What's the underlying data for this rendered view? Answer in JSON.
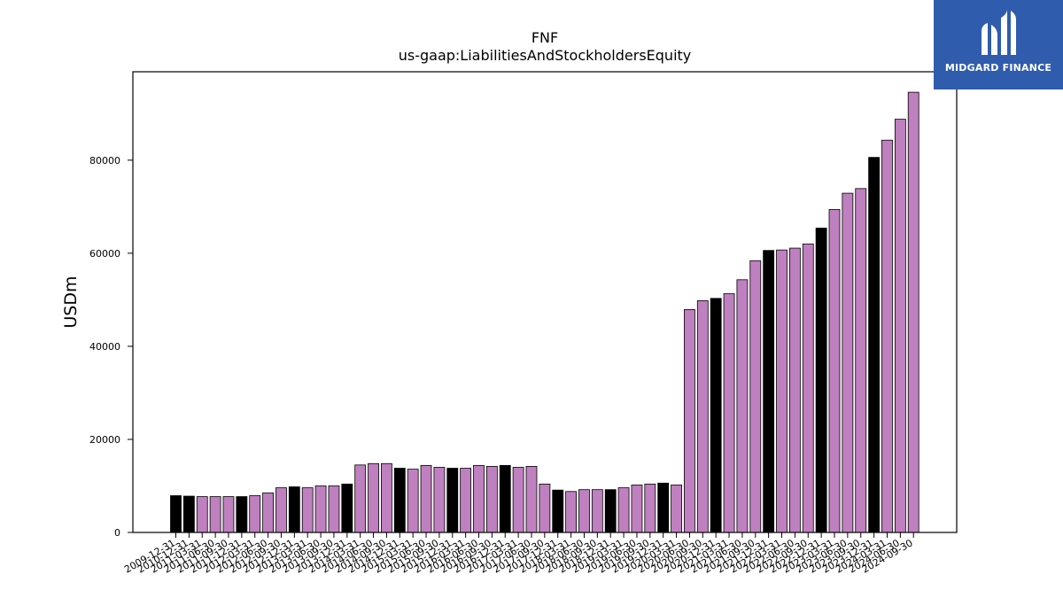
{
  "chart_data": {
    "type": "bar",
    "title": "FNF",
    "subtitle": "us-gaap:LiabilitiesAndStockholdersEquity",
    "xlabel": "",
    "ylabel": "USDm",
    "ylim": [
      0,
      99000
    ],
    "yticks": [
      0,
      20000,
      40000,
      60000,
      80000
    ],
    "grid": false,
    "colors": {
      "annual": "#000000",
      "quarterly": "#bf80bf",
      "edge": "#000000"
    },
    "visible_xtick_labels": [
      "2009-12-31",
      "2010-12-31",
      "2011-03-31",
      "2011-06-30",
      "2011-09-30",
      "2011-12-31",
      "2012-03-31",
      "2012-06-30",
      "2012-09-30",
      "2012-12-31",
      "2013-03-31",
      "2013-06-30",
      "2013-09-30",
      "2013-12-31",
      "2014-03-31",
      "2014-06-30",
      "2014-09-30",
      "2014-12-31",
      "2015-03-31",
      "2015-06-30",
      "2015-09-30",
      "2015-12-31",
      "2016-03-31",
      "2016-06-30",
      "2016-09-30",
      "2016-12-31",
      "2017-03-31",
      "2017-06-30",
      "2017-09-30",
      "2017-12-31",
      "2018-03-31",
      "2018-06-30",
      "2018-09-30",
      "2018-12-31",
      "2019-03-31",
      "2019-06-30",
      "2019-09-30",
      "2019-12-31",
      "2020-03-31",
      "2020-06-30",
      "2020-09-30",
      "2020-12-31",
      "2021-03-31",
      "2021-06-30",
      "2021-09-30",
      "2021-12-31",
      "2022-03-31",
      "2022-06-30",
      "2022-09-30",
      "2022-12-31",
      "2023-03-31",
      "2023-06-30",
      "2023-09-30",
      "2023-12-31",
      "2024-03-31",
      "2024-06-30",
      "2024-09-30"
    ],
    "bars": [
      {
        "x": "2009-12-31",
        "value": 7900,
        "kind": "annual"
      },
      {
        "x": "2010-12-31",
        "value": 7800,
        "kind": "annual"
      },
      {
        "x": "2011-03-31",
        "value": 7700,
        "kind": "quarterly"
      },
      {
        "x": "2011-06-30",
        "value": 7700,
        "kind": "quarterly"
      },
      {
        "x": "2011-09-30",
        "value": 7700,
        "kind": "quarterly"
      },
      {
        "x": "2011-12-31",
        "value": 7700,
        "kind": "annual"
      },
      {
        "x": "2012-03-31",
        "value": 7900,
        "kind": "quarterly"
      },
      {
        "x": "2012-06-30",
        "value": 8500,
        "kind": "quarterly"
      },
      {
        "x": "2012-09-30",
        "value": 9600,
        "kind": "quarterly"
      },
      {
        "x": "2012-12-31",
        "value": 9800,
        "kind": "annual"
      },
      {
        "x": "2013-03-31",
        "value": 9600,
        "kind": "quarterly"
      },
      {
        "x": "2013-06-30",
        "value": 10000,
        "kind": "quarterly"
      },
      {
        "x": "2013-09-30",
        "value": 10000,
        "kind": "quarterly"
      },
      {
        "x": "2013-12-31",
        "value": 10400,
        "kind": "annual"
      },
      {
        "x": "2014-03-31",
        "value": 14500,
        "kind": "quarterly"
      },
      {
        "x": "2014-06-30",
        "value": 14800,
        "kind": "quarterly"
      },
      {
        "x": "2014-09-30",
        "value": 14800,
        "kind": "quarterly"
      },
      {
        "x": "2014-12-31",
        "value": 13800,
        "kind": "annual"
      },
      {
        "x": "2015-03-31",
        "value": 13600,
        "kind": "quarterly"
      },
      {
        "x": "2015-06-30",
        "value": 14400,
        "kind": "quarterly"
      },
      {
        "x": "2015-09-30",
        "value": 14000,
        "kind": "quarterly"
      },
      {
        "x": "2015-12-31",
        "value": 13800,
        "kind": "annual"
      },
      {
        "x": "2016-03-31",
        "value": 13800,
        "kind": "quarterly"
      },
      {
        "x": "2016-06-30",
        "value": 14400,
        "kind": "quarterly"
      },
      {
        "x": "2016-09-30",
        "value": 14200,
        "kind": "quarterly"
      },
      {
        "x": "2016-12-31",
        "value": 14400,
        "kind": "annual"
      },
      {
        "x": "2017-03-31",
        "value": 14000,
        "kind": "quarterly"
      },
      {
        "x": "2017-06-30",
        "value": 14200,
        "kind": "quarterly"
      },
      {
        "x": "2017-09-30",
        "value": 10400,
        "kind": "quarterly"
      },
      {
        "x": "2017-12-31",
        "value": 9100,
        "kind": "annual"
      },
      {
        "x": "2018-03-31",
        "value": 8800,
        "kind": "quarterly"
      },
      {
        "x": "2018-06-30",
        "value": 9200,
        "kind": "quarterly"
      },
      {
        "x": "2018-09-30",
        "value": 9200,
        "kind": "quarterly"
      },
      {
        "x": "2018-12-31",
        "value": 9200,
        "kind": "annual"
      },
      {
        "x": "2019-03-31",
        "value": 9600,
        "kind": "quarterly"
      },
      {
        "x": "2019-06-30",
        "value": 10200,
        "kind": "quarterly"
      },
      {
        "x": "2019-09-30",
        "value": 10400,
        "kind": "quarterly"
      },
      {
        "x": "2019-12-31",
        "value": 10600,
        "kind": "annual"
      },
      {
        "x": "2020-03-31",
        "value": 10200,
        "kind": "quarterly"
      },
      {
        "x": "2020-06-30",
        "value": 47900,
        "kind": "quarterly"
      },
      {
        "x": "2020-09-30",
        "value": 49800,
        "kind": "quarterly"
      },
      {
        "x": "2020-12-31",
        "value": 50300,
        "kind": "annual"
      },
      {
        "x": "2021-03-31",
        "value": 51300,
        "kind": "quarterly"
      },
      {
        "x": "2021-06-30",
        "value": 54300,
        "kind": "quarterly"
      },
      {
        "x": "2021-09-30",
        "value": 58400,
        "kind": "quarterly"
      },
      {
        "x": "2021-12-31",
        "value": 60600,
        "kind": "annual"
      },
      {
        "x": "2022-03-31",
        "value": 60700,
        "kind": "quarterly"
      },
      {
        "x": "2022-06-30",
        "value": 61100,
        "kind": "quarterly"
      },
      {
        "x": "2022-09-30",
        "value": 62000,
        "kind": "quarterly"
      },
      {
        "x": "2022-12-31",
        "value": 65400,
        "kind": "annual"
      },
      {
        "x": "2023-03-31",
        "value": 69400,
        "kind": "quarterly"
      },
      {
        "x": "2023-06-30",
        "value": 72900,
        "kind": "quarterly"
      },
      {
        "x": "2023-09-30",
        "value": 73900,
        "kind": "quarterly"
      },
      {
        "x": "2023-12-31",
        "value": 80600,
        "kind": "annual"
      },
      {
        "x": "2024-03-31",
        "value": 84300,
        "kind": "quarterly"
      },
      {
        "x": "2024-06-30",
        "value": 88800,
        "kind": "quarterly"
      },
      {
        "x": "2024-09-30",
        "value": 94600,
        "kind": "quarterly"
      }
    ]
  },
  "logo": {
    "text": "MIDGARD FINANCE",
    "background": "#2f5cad"
  }
}
